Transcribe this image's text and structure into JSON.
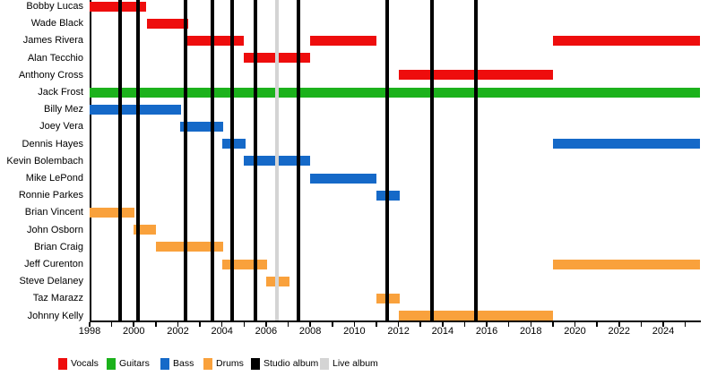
{
  "chart_data": {
    "type": "timeline",
    "description": "Band members timeline (gantt-style) with album release markers",
    "axis": {
      "start_year": 1998,
      "end_year": 2025.67,
      "tick_every_years": 1,
      "year_labels": [
        1998,
        2000,
        2002,
        2004,
        2006,
        2008,
        2010,
        2012,
        2014,
        2016,
        2018,
        2020,
        2022,
        2024
      ]
    },
    "colors": {
      "vocals": "#ee0d0d",
      "guitars": "#1cb21c",
      "bass": "#1569c8",
      "drums": "#f9a13c",
      "studio_album": "#000000",
      "live_album": "#d4d4d4"
    },
    "members": [
      {
        "name": "Bobby Lucas",
        "role": "vocals",
        "spans": [
          [
            1998.0,
            2000.55
          ]
        ]
      },
      {
        "name": "Wade Black",
        "role": "vocals",
        "spans": [
          [
            2000.6,
            2002.45
          ]
        ]
      },
      {
        "name": "James Rivera",
        "role": "vocals",
        "spans": [
          [
            2002.4,
            2005.0
          ],
          [
            2008.0,
            2011.0
          ],
          [
            2019.0,
            2025.67
          ]
        ]
      },
      {
        "name": "Alan Tecchio",
        "role": "vocals",
        "spans": [
          [
            2005.0,
            2008.0
          ]
        ]
      },
      {
        "name": "Anthony Cross",
        "role": "vocals",
        "spans": [
          [
            2012.0,
            2019.0
          ]
        ]
      },
      {
        "name": "Jack Frost",
        "role": "guitars",
        "spans": [
          [
            1998.0,
            2025.67
          ]
        ]
      },
      {
        "name": "Billy Mez",
        "role": "bass",
        "spans": [
          [
            1998.0,
            2002.15
          ]
        ]
      },
      {
        "name": "Joey Vera",
        "role": "bass",
        "spans": [
          [
            2002.1,
            2004.05
          ]
        ]
      },
      {
        "name": "Dennis Hayes",
        "role": "bass",
        "spans": [
          [
            2004.0,
            2005.05
          ],
          [
            2019.0,
            2025.67
          ]
        ]
      },
      {
        "name": "Kevin Bolembach",
        "role": "bass",
        "spans": [
          [
            2005.0,
            2008.0
          ]
        ]
      },
      {
        "name": "Mike LePond",
        "role": "bass",
        "spans": [
          [
            2008.0,
            2011.0
          ]
        ]
      },
      {
        "name": "Ronnie Parkes",
        "role": "bass",
        "spans": [
          [
            2011.0,
            2012.05
          ]
        ]
      },
      {
        "name": "Brian Vincent",
        "role": "drums",
        "spans": [
          [
            1998.0,
            2000.05
          ]
        ]
      },
      {
        "name": "John Osborn",
        "role": "drums",
        "spans": [
          [
            2000.0,
            2001.0
          ]
        ]
      },
      {
        "name": "Brian Craig",
        "role": "drums",
        "spans": [
          [
            2001.0,
            2004.05
          ]
        ]
      },
      {
        "name": "Jeff Curenton",
        "role": "drums",
        "spans": [
          [
            2004.0,
            2006.05
          ],
          [
            2019.0,
            2025.67
          ]
        ]
      },
      {
        "name": "Steve Delaney",
        "role": "drums",
        "spans": [
          [
            2006.0,
            2007.05
          ]
        ]
      },
      {
        "name": "Taz Marazz",
        "role": "drums",
        "spans": [
          [
            2011.0,
            2012.05
          ]
        ]
      },
      {
        "name": "Johnny Kelly",
        "role": "drums",
        "spans": [
          [
            2012.0,
            2019.0
          ]
        ]
      }
    ],
    "releases": {
      "studio_album_years": [
        1999.4,
        2000.2,
        2002.35,
        2003.55,
        2004.45,
        2005.5,
        2007.45,
        2011.5,
        2013.5,
        2015.5
      ],
      "live_album_years": [
        2006.5
      ]
    }
  },
  "legend": {
    "items": [
      {
        "label": "Vocals",
        "color_key": "vocals"
      },
      {
        "label": "Guitars",
        "color_key": "guitars"
      },
      {
        "label": "Bass",
        "color_key": "bass"
      },
      {
        "label": "Drums",
        "color_key": "drums"
      },
      {
        "label": "Studio album",
        "color_key": "studio_album"
      },
      {
        "label": "Live album",
        "color_key": "live_album"
      }
    ]
  }
}
